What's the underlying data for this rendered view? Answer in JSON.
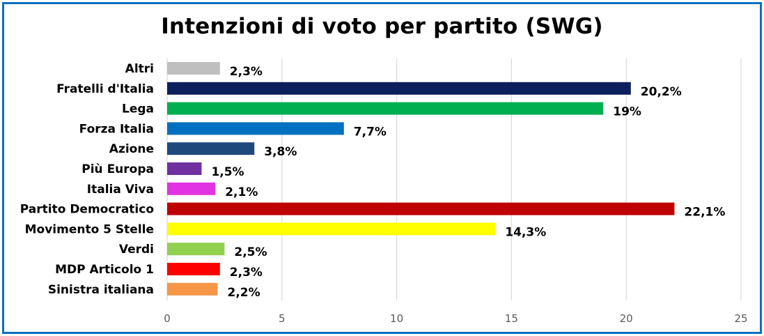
{
  "chart_data": {
    "type": "bar",
    "orientation": "horizontal",
    "title": "Intenzioni di voto per partito (SWG)",
    "categories": [
      "Altri",
      "Fratelli d'Italia",
      "Lega",
      "Forza Italia",
      "Azione",
      "Più Europa",
      "Italia Viva",
      "Partito Democratico",
      "Movimento 5 Stelle",
      "Verdi",
      "MDP Articolo 1",
      "Sinistra italiana"
    ],
    "values": [
      2.3,
      20.2,
      19,
      7.7,
      3.8,
      1.5,
      2.1,
      22.1,
      14.3,
      2.5,
      2.3,
      2.2
    ],
    "value_labels": [
      "2,3%",
      "20,2%",
      "19%",
      "7,7%",
      "3,8%",
      "1,5%",
      "2,1%",
      "22,1%",
      "14,3%",
      "2,5%",
      "2,3%",
      "2,2%"
    ],
    "colors": [
      "#bfbfbf",
      "#0d1f5c",
      "#00b050",
      "#0070c0",
      "#1f497d",
      "#7030a0",
      "#e233e2",
      "#c00000",
      "#ffff00",
      "#92d050",
      "#ff0000",
      "#f79646"
    ],
    "xlim": [
      0,
      25
    ],
    "xticks": [
      0,
      5,
      10,
      15,
      20,
      25
    ],
    "xtick_labels": [
      "0",
      "5",
      "10",
      "15",
      "20",
      "25"
    ],
    "grid": true,
    "legend": "none"
  }
}
